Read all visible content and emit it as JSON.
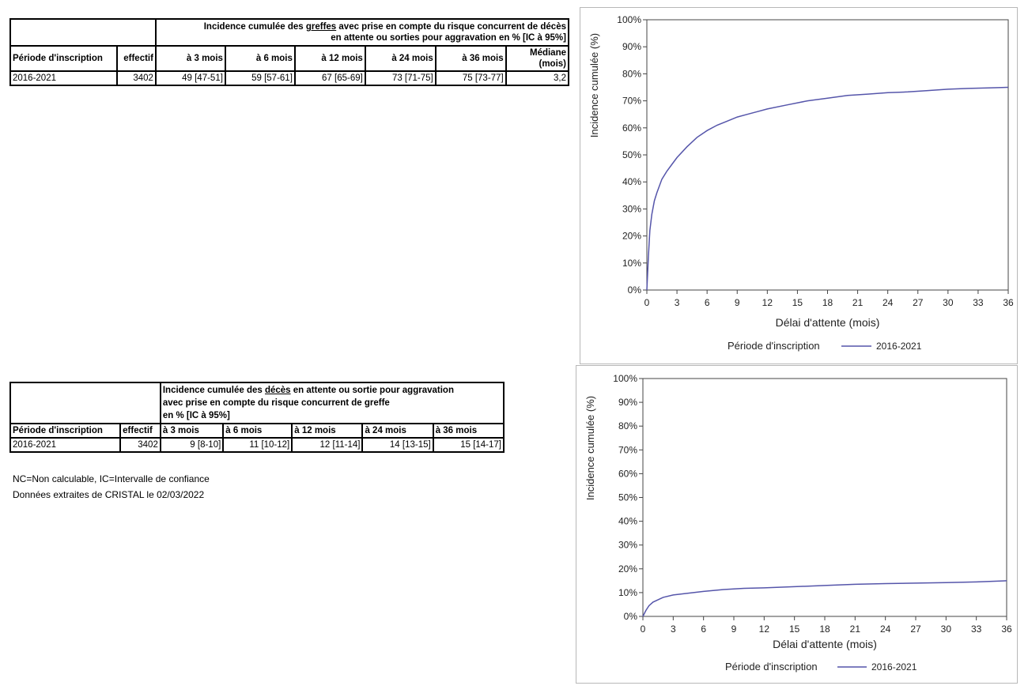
{
  "table1": {
    "title_pre": "Incidence cumulée des ",
    "title_under": "greffes",
    "title_post": " avec prise en compte du risque concurrent de décès",
    "title_line2": "en attente ou sorties pour aggravation en % [IC à 95%]",
    "headers": [
      "Période d'inscription",
      "effectif",
      "à 3 mois",
      "à 6 mois",
      "à 12 mois",
      "à 24 mois",
      "à 36 mois"
    ],
    "median_h1": "Médiane",
    "median_h2": "(mois)",
    "row": [
      "2016-2021",
      "3402",
      "49 [47-51]",
      "59 [57-61]",
      "67 [65-69]",
      "73 [71-75]",
      "75 [73-77]",
      "3,2"
    ]
  },
  "table2": {
    "title_pre": "Incidence cumulée des ",
    "title_under": "décès",
    "title_post": " en attente ou sortie pour aggravation",
    "title_line2": "avec prise en compte du risque concurrent de greffe",
    "title_line3": "en % [IC à 95%]",
    "headers": [
      "Période d'inscription",
      "effectif",
      "à 3 mois",
      "à 6 mois",
      "à 12 mois",
      "à 24 mois",
      "à 36 mois"
    ],
    "row": [
      "2016-2021",
      "3402",
      "9 [8-10]",
      "11 [10-12]",
      "12 [11-14]",
      "14 [13-15]",
      "15 [14-17]"
    ]
  },
  "notes": {
    "line1": "NC=Non calculable, IC=Intervalle de confiance",
    "line2": "Données extraites de CRISTAL le 02/03/2022"
  },
  "chart_data": [
    {
      "type": "line",
      "xlabel": "Délai d'attente (mois)",
      "ylabel": "Incidence cumulée (%)",
      "xlim": [
        0,
        36
      ],
      "ylim": [
        0,
        100
      ],
      "xticks": [
        "0",
        "3",
        "6",
        "9",
        "12",
        "15",
        "18",
        "21",
        "24",
        "27",
        "30",
        "33",
        "36"
      ],
      "yticks": [
        "0%",
        "10%",
        "20%",
        "30%",
        "40%",
        "50%",
        "60%",
        "70%",
        "80%",
        "90%",
        "100%"
      ],
      "legend_title": "Période d'inscription",
      "series": [
        {
          "name": "2016-2021",
          "color": "#5555aa",
          "x": [
            0,
            0.15,
            0.3,
            0.5,
            0.75,
            1,
            1.5,
            2,
            2.5,
            3,
            4,
            5,
            6,
            7,
            8,
            9,
            10,
            11,
            12,
            14,
            16,
            18,
            20,
            22,
            24,
            26,
            28,
            30,
            32,
            34,
            36
          ],
          "y": [
            0,
            12,
            22,
            28,
            33,
            36,
            41,
            44,
            46.5,
            49,
            53,
            56.5,
            59,
            61,
            62.5,
            64,
            65,
            66,
            67,
            68.5,
            70,
            71,
            72,
            72.5,
            73,
            73.3,
            73.8,
            74.3,
            74.6,
            74.8,
            75
          ]
        }
      ]
    },
    {
      "type": "line",
      "xlabel": "Délai d'attente (mois)",
      "ylabel": "Incidence cumulée (%)",
      "xlim": [
        0,
        36
      ],
      "ylim": [
        0,
        100
      ],
      "xticks": [
        "0",
        "3",
        "6",
        "9",
        "12",
        "15",
        "18",
        "21",
        "24",
        "27",
        "30",
        "33",
        "36"
      ],
      "yticks": [
        "0%",
        "10%",
        "20%",
        "30%",
        "40%",
        "50%",
        "60%",
        "70%",
        "80%",
        "90%",
        "100%"
      ],
      "legend_title": "Période d'inscription",
      "series": [
        {
          "name": "2016-2021",
          "color": "#5555aa",
          "x": [
            0,
            0.3,
            0.6,
            1,
            1.5,
            2,
            3,
            4,
            5,
            6,
            8,
            10,
            12,
            15,
            18,
            21,
            24,
            27,
            30,
            33,
            36
          ],
          "y": [
            0,
            2.5,
            4.5,
            6,
            7,
            8,
            9,
            9.5,
            10,
            10.5,
            11.3,
            11.8,
            12,
            12.5,
            13,
            13.5,
            13.8,
            14,
            14.2,
            14.5,
            15
          ]
        }
      ]
    }
  ]
}
